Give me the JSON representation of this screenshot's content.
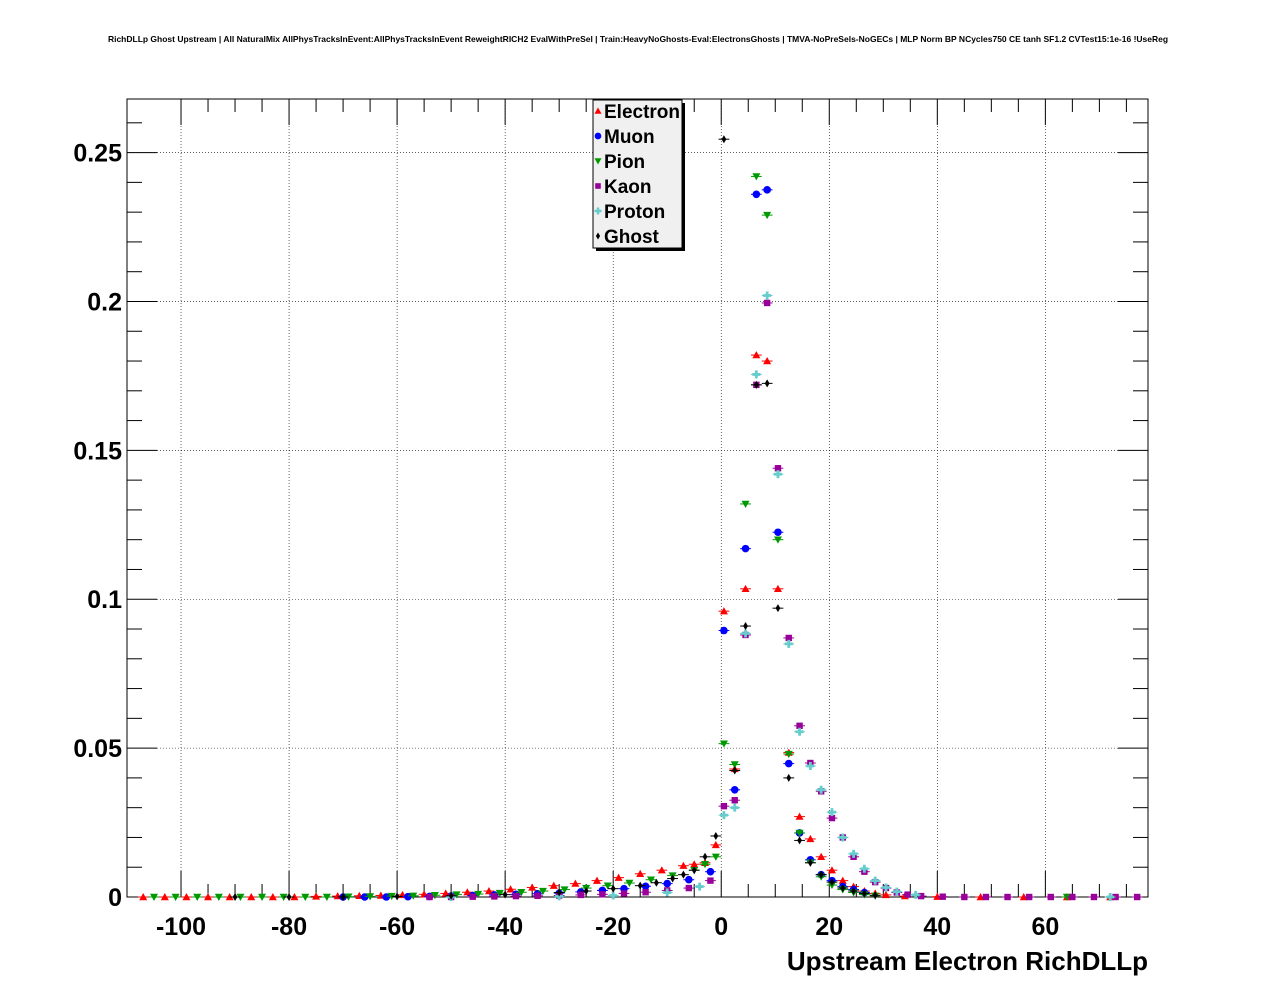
{
  "chart_data": {
    "type": "scatter",
    "title": "RichDLLp Ghost Upstream | All NaturalMix AllPhysTracksInEvent:AllPhysTracksInEvent ReweightRICH2 EvalWithPreSel | Train:HeavyNoGhosts-Eval:ElectronsGhosts | TMVA-NoPreSels-NoGECs | MLP Norm BP NCycles750 CE tanh SF1.2 CVTest15:1e-16 !UseReg",
    "xlabel": "Upstream Electron RichDLLp",
    "ylabel": "",
    "xlim": [
      -110,
      79
    ],
    "ylim": [
      0,
      0.268
    ],
    "grid": true,
    "legend_position": "top-center",
    "x_ticks": [
      -100,
      -80,
      -60,
      -40,
      -20,
      0,
      20,
      40,
      60
    ],
    "x_tick_labels": [
      "-100",
      "-80",
      "-60",
      "-40",
      "-20",
      "0",
      "20",
      "40",
      "60"
    ],
    "y_ticks": [
      0,
      0.05,
      0.1,
      0.15,
      0.2,
      0.25
    ],
    "y_tick_labels": [
      "0",
      "0.05",
      "0.1",
      "0.15",
      "0.2",
      "0.25"
    ],
    "series": [
      {
        "name": "Electron",
        "color": "#ff0000",
        "marker": "triangle-up",
        "points": [
          [
            -107,
            0
          ],
          [
            -103,
            0
          ],
          [
            -99,
            0
          ],
          [
            -95,
            0
          ],
          [
            -91,
            0
          ],
          [
            -87,
            0
          ],
          [
            -83,
            0
          ],
          [
            -79,
            0
          ],
          [
            -75,
            0.0002
          ],
          [
            -71,
            0.0003
          ],
          [
            -67,
            0.0004
          ],
          [
            -63,
            0.0005
          ],
          [
            -59,
            0.0007
          ],
          [
            -55,
            0.0009
          ],
          [
            -51,
            0.0012
          ],
          [
            -47,
            0.0016
          ],
          [
            -43,
            0.002
          ],
          [
            -39,
            0.0026
          ],
          [
            -35,
            0.0032
          ],
          [
            -31,
            0.0038
          ],
          [
            -27,
            0.0045
          ],
          [
            -23,
            0.0055
          ],
          [
            -19,
            0.0065
          ],
          [
            -15,
            0.0078
          ],
          [
            -11,
            0.009
          ],
          [
            -7,
            0.0105
          ],
          [
            -5,
            0.011
          ],
          [
            -3,
            0.0115
          ],
          [
            -1,
            0.0175
          ],
          [
            0.5,
            0.096
          ],
          [
            2.5,
            0.043
          ],
          [
            4.5,
            0.1035
          ],
          [
            6.5,
            0.182
          ],
          [
            8.5,
            0.18
          ],
          [
            10.5,
            0.1035
          ],
          [
            12.5,
            0.0485
          ],
          [
            14.5,
            0.027
          ],
          [
            16.5,
            0.0195
          ],
          [
            18.5,
            0.0135
          ],
          [
            20.5,
            0.009
          ],
          [
            22.5,
            0.0055
          ],
          [
            24.5,
            0.0035
          ],
          [
            26.5,
            0.002
          ],
          [
            28.5,
            0.0012
          ],
          [
            30.5,
            0.0007
          ],
          [
            34,
            0.0003
          ],
          [
            40,
            0.0001
          ],
          [
            48,
            0
          ],
          [
            56,
            0
          ],
          [
            64,
            0
          ],
          [
            72,
            0
          ]
        ]
      },
      {
        "name": "Muon",
        "color": "#0000ff",
        "marker": "circle",
        "points": [
          [
            -70,
            0
          ],
          [
            -66,
            0
          ],
          [
            -62,
            0
          ],
          [
            -58,
            0.0001
          ],
          [
            -54,
            0.0002
          ],
          [
            -50,
            0.0003
          ],
          [
            -46,
            0.0005
          ],
          [
            -42,
            0.0007
          ],
          [
            -38,
            0.0009
          ],
          [
            -34,
            0.0011
          ],
          [
            -30,
            0.0013
          ],
          [
            -26,
            0.0017
          ],
          [
            -22,
            0.0022
          ],
          [
            -18,
            0.0028
          ],
          [
            -14,
            0.0036
          ],
          [
            -10,
            0.0045
          ],
          [
            -6,
            0.0058
          ],
          [
            -2,
            0.0085
          ],
          [
            0.5,
            0.0895
          ],
          [
            2.5,
            0.036
          ],
          [
            4.5,
            0.117
          ],
          [
            6.5,
            0.236
          ],
          [
            8.5,
            0.2375
          ],
          [
            10.5,
            0.1225
          ],
          [
            12.5,
            0.0448
          ],
          [
            14.5,
            0.0215
          ],
          [
            16.5,
            0.0125
          ],
          [
            18.5,
            0.0075
          ],
          [
            20.5,
            0.0055
          ],
          [
            22.5,
            0.0035
          ],
          [
            24.5,
            0.0025
          ],
          [
            26.5,
            0.0015
          ]
        ]
      },
      {
        "name": "Pion",
        "color": "#009900",
        "marker": "triangle-down",
        "points": [
          [
            -105,
            0
          ],
          [
            -101,
            0
          ],
          [
            -97,
            0
          ],
          [
            -93,
            0
          ],
          [
            -89,
            0
          ],
          [
            -85,
            0
          ],
          [
            -81,
            0
          ],
          [
            -77,
            0
          ],
          [
            -73,
            0
          ],
          [
            -69,
            0.0001
          ],
          [
            -65,
            0.0002
          ],
          [
            -61,
            0.0003
          ],
          [
            -57,
            0.0004
          ],
          [
            -53,
            0.0006
          ],
          [
            -49,
            0.0008
          ],
          [
            -45,
            0.001
          ],
          [
            -41,
            0.0013
          ],
          [
            -37,
            0.0016
          ],
          [
            -33,
            0.002
          ],
          [
            -29,
            0.0025
          ],
          [
            -25,
            0.003
          ],
          [
            -21,
            0.0038
          ],
          [
            -17,
            0.0047
          ],
          [
            -13,
            0.0058
          ],
          [
            -9,
            0.0072
          ],
          [
            -5,
            0.009
          ],
          [
            -3,
            0.011
          ],
          [
            -1,
            0.0135
          ],
          [
            0.5,
            0.0515
          ],
          [
            2.5,
            0.0445
          ],
          [
            4.5,
            0.132
          ],
          [
            6.5,
            0.242
          ],
          [
            8.5,
            0.229
          ],
          [
            10.5,
            0.12
          ],
          [
            12.5,
            0.048
          ],
          [
            14.5,
            0.0215
          ],
          [
            16.5,
            0.0115
          ],
          [
            18.5,
            0.0068
          ],
          [
            20.5,
            0.004
          ],
          [
            22.5,
            0.0025
          ],
          [
            24.5,
            0.0015
          ],
          [
            26.5,
            0.0008
          ],
          [
            28.5,
            0.0004
          ],
          [
            64,
            0
          ]
        ]
      },
      {
        "name": "Kaon",
        "color": "#990099",
        "marker": "square",
        "points": [
          [
            -54,
            0
          ],
          [
            -50,
            0
          ],
          [
            -46,
            0.0001
          ],
          [
            -42,
            0.0002
          ],
          [
            -38,
            0.0003
          ],
          [
            -34,
            0.0004
          ],
          [
            -30,
            0.0005
          ],
          [
            -26,
            0.0007
          ],
          [
            -22,
            0.0009
          ],
          [
            -18,
            0.0012
          ],
          [
            -14,
            0.0016
          ],
          [
            -10,
            0.0022
          ],
          [
            -6,
            0.003
          ],
          [
            -2,
            0.0055
          ],
          [
            0.5,
            0.0305
          ],
          [
            2.5,
            0.0325
          ],
          [
            4.5,
            0.088
          ],
          [
            6.5,
            0.172
          ],
          [
            8.5,
            0.1995
          ],
          [
            10.5,
            0.144
          ],
          [
            12.5,
            0.087
          ],
          [
            14.5,
            0.0575
          ],
          [
            16.5,
            0.045
          ],
          [
            18.5,
            0.0355
          ],
          [
            20.5,
            0.0265
          ],
          [
            22.5,
            0.02
          ],
          [
            24.5,
            0.0135
          ],
          [
            26.5,
            0.0085
          ],
          [
            28.5,
            0.005
          ],
          [
            30.5,
            0.003
          ],
          [
            32.5,
            0.0015
          ],
          [
            34.5,
            0.0008
          ],
          [
            37,
            0.0003
          ],
          [
            41,
            0.0001
          ],
          [
            45,
            0
          ],
          [
            49,
            0
          ],
          [
            53,
            0
          ],
          [
            57,
            0
          ],
          [
            61,
            0
          ],
          [
            65,
            0
          ],
          [
            69,
            0
          ],
          [
            73,
            0
          ],
          [
            77,
            0
          ]
        ]
      },
      {
        "name": "Proton",
        "color": "#66cccc",
        "marker": "cross",
        "points": [
          [
            -50,
            0
          ],
          [
            -30,
            0.0002
          ],
          [
            -20,
            0.0005
          ],
          [
            -10,
            0.0015
          ],
          [
            -4,
            0.0035
          ],
          [
            0.5,
            0.0275
          ],
          [
            2.5,
            0.03
          ],
          [
            4.5,
            0.0885
          ],
          [
            6.5,
            0.1755
          ],
          [
            8.5,
            0.202
          ],
          [
            10.5,
            0.142
          ],
          [
            12.5,
            0.085
          ],
          [
            14.5,
            0.0555
          ],
          [
            16.5,
            0.044
          ],
          [
            18.5,
            0.036
          ],
          [
            20.5,
            0.0285
          ],
          [
            22.5,
            0.02
          ],
          [
            24.5,
            0.0145
          ],
          [
            26.5,
            0.0095
          ],
          [
            28.5,
            0.0055
          ],
          [
            30.5,
            0.0032
          ],
          [
            32.5,
            0.0018
          ],
          [
            36,
            0.0007
          ],
          [
            72,
            0
          ]
        ]
      },
      {
        "name": "Ghost",
        "color": "#000000",
        "marker": "diamond",
        "points": [
          [
            -90,
            0
          ],
          [
            -80,
            0
          ],
          [
            -70,
            0
          ],
          [
            -60,
            0.0002
          ],
          [
            -50,
            0.0004
          ],
          [
            -40,
            0.0008
          ],
          [
            -30,
            0.0015
          ],
          [
            -25,
            0.002
          ],
          [
            -20,
            0.0028
          ],
          [
            -15,
            0.0038
          ],
          [
            -12,
            0.0048
          ],
          [
            -9,
            0.0062
          ],
          [
            -7,
            0.0075
          ],
          [
            -5,
            0.009
          ],
          [
            -3,
            0.0135
          ],
          [
            -1,
            0.0205
          ],
          [
            0.5,
            0.2545
          ],
          [
            2.5,
            0.0425
          ],
          [
            4.5,
            0.091
          ],
          [
            6.5,
            0.172
          ],
          [
            8.5,
            0.1725
          ],
          [
            10.5,
            0.097
          ],
          [
            12.5,
            0.04
          ],
          [
            14.5,
            0.019
          ],
          [
            16.5,
            0.0115
          ],
          [
            18.5,
            0.0075
          ],
          [
            20.5,
            0.005
          ],
          [
            22.5,
            0.003
          ],
          [
            24.5,
            0.002
          ],
          [
            26.5,
            0.0012
          ],
          [
            28.5,
            0.0006
          ]
        ]
      }
    ]
  }
}
